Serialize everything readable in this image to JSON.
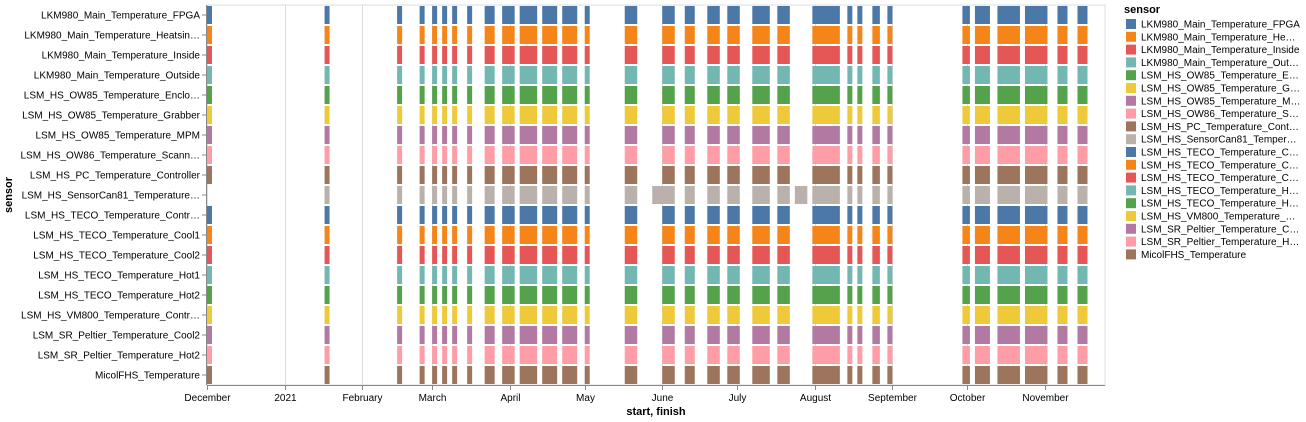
{
  "chart_data": {
    "type": "gantt",
    "x_title": "start, finish",
    "y_title": "sensor",
    "legend_title": "sensor",
    "legend_placement": "right",
    "x_ticks": [
      "December",
      "2021",
      "February",
      "March",
      "April",
      "May",
      "June",
      "July",
      "August",
      "September",
      "October",
      "November"
    ],
    "x_tick_dates": [
      "2020-12-01",
      "2021-01-01",
      "2021-02-01",
      "2021-03-01",
      "2021-04-01",
      "2021-05-01",
      "2021-06-01",
      "2021-07-01",
      "2021-08-01",
      "2021-09-01",
      "2021-10-01",
      "2021-11-01"
    ],
    "x_domain": [
      "2020-12-01",
      "2021-11-25"
    ],
    "grid": true,
    "sensors": [
      {
        "label": "LKM980_Main_Temperature_FPGA",
        "legend": "LKM980_Main_Temperature_FPGA",
        "color": "#4c78a8"
      },
      {
        "label": "LKM980_Main_Temperature_Heatsin…",
        "legend": "LKM980_Main_Temperature_He…",
        "color": "#f58518"
      },
      {
        "label": "LKM980_Main_Temperature_Inside",
        "legend": "LKM980_Main_Temperature_Inside",
        "color": "#e45756"
      },
      {
        "label": "LKM980_Main_Temperature_Outside",
        "legend": "LKM980_Main_Temperature_Out…",
        "color": "#72b7b2"
      },
      {
        "label": "LSM_HS_OW85_Temperature_Enclo…",
        "legend": "LSM_HS_OW85_Temperature_E…",
        "color": "#54a24b"
      },
      {
        "label": "LSM_HS_OW85_Temperature_Grabber",
        "legend": "LSM_HS_OW85_Temperature_G…",
        "color": "#eeca3b"
      },
      {
        "label": "LSM_HS_OW85_Temperature_MPM",
        "legend": "LSM_HS_OW85_Temperature_M…",
        "color": "#b279a2"
      },
      {
        "label": "LSM_HS_OW86_Temperature_Scann…",
        "legend": "LSM_HS_OW86_Temperature_S…",
        "color": "#ff9da6"
      },
      {
        "label": "LSM_HS_PC_Temperature_Controller",
        "legend": "LSM_HS_PC_Temperature_Cont…",
        "color": "#9d755d"
      },
      {
        "label": "LSM_HS_SensorCan81_Temperature…",
        "legend": "LSM_HS_SensorCan81_Temper…",
        "color": "#bab0ac"
      },
      {
        "label": "LSM_HS_TECO_Temperature_Contr…",
        "legend": "LSM_HS_TECO_Temperature_C…",
        "color": "#4c78a8"
      },
      {
        "label": "LSM_HS_TECO_Temperature_Cool1",
        "legend": "LSM_HS_TECO_Temperature_C…",
        "color": "#f58518"
      },
      {
        "label": "LSM_HS_TECO_Temperature_Cool2",
        "legend": "LSM_HS_TECO_Temperature_C…",
        "color": "#e45756"
      },
      {
        "label": "LSM_HS_TECO_Temperature_Hot1",
        "legend": "LSM_HS_TECO_Temperature_H…",
        "color": "#72b7b2"
      },
      {
        "label": "LSM_HS_TECO_Temperature_Hot2",
        "legend": "LSM_HS_TECO_Temperature_H…",
        "color": "#54a24b"
      },
      {
        "label": "LSM_HS_VM800_Temperature_Contr…",
        "legend": "LSM_HS_VM800_Temperature_…",
        "color": "#eeca3b"
      },
      {
        "label": "LSM_SR_Peltier_Temperature_Cool2",
        "legend": "LSM_SR_Peltier_Temperature_C…",
        "color": "#b279a2"
      },
      {
        "label": "LSM_SR_Peltier_Temperature_Hot2",
        "legend": "LSM_SR_Peltier_Temperature_H…",
        "color": "#ff9da6"
      },
      {
        "label": "MicolFHS_Temperature",
        "legend": "MicolFHS_Temperature",
        "color": "#9d755d"
      }
    ],
    "common_intervals": [
      [
        "2020-12-01",
        "2020-12-03"
      ],
      [
        "2021-01-17",
        "2021-01-19"
      ],
      [
        "2021-02-15",
        "2021-02-17"
      ],
      [
        "2021-02-24",
        "2021-02-26"
      ],
      [
        "2021-03-01",
        "2021-03-03"
      ],
      [
        "2021-03-05",
        "2021-03-07"
      ],
      [
        "2021-03-09",
        "2021-03-11"
      ],
      [
        "2021-03-15",
        "2021-03-17"
      ],
      [
        "2021-03-22",
        "2021-03-26"
      ],
      [
        "2021-03-29",
        "2021-04-03"
      ],
      [
        "2021-04-05",
        "2021-04-12"
      ],
      [
        "2021-04-14",
        "2021-04-20"
      ],
      [
        "2021-04-22",
        "2021-04-28"
      ],
      [
        "2021-05-01",
        "2021-05-03"
      ],
      [
        "2021-05-17",
        "2021-05-22"
      ],
      [
        "2021-06-01",
        "2021-06-06"
      ],
      [
        "2021-06-10",
        "2021-06-14"
      ],
      [
        "2021-06-19",
        "2021-06-24"
      ],
      [
        "2021-06-27",
        "2021-07-02"
      ],
      [
        "2021-07-07",
        "2021-07-14"
      ],
      [
        "2021-07-17",
        "2021-07-22"
      ],
      [
        "2021-07-31",
        "2021-08-11"
      ],
      [
        "2021-08-14",
        "2021-08-16"
      ],
      [
        "2021-08-18",
        "2021-08-20"
      ],
      [
        "2021-08-24",
        "2021-08-27"
      ],
      [
        "2021-08-30",
        "2021-09-01"
      ],
      [
        "2021-09-29",
        "2021-10-02"
      ],
      [
        "2021-10-04",
        "2021-10-10"
      ],
      [
        "2021-10-13",
        "2021-10-22"
      ],
      [
        "2021-10-24",
        "2021-11-02"
      ],
      [
        "2021-11-06",
        "2021-11-10"
      ],
      [
        "2021-11-14",
        "2021-11-18"
      ]
    ],
    "extra_intervals": [
      {
        "sensor": "LSM_HS_SensorCan81_Temperature…",
        "start": "2021-05-28",
        "finish": "2021-06-03"
      },
      {
        "sensor": "LSM_HS_SensorCan81_Temperature…",
        "start": "2021-07-24",
        "finish": "2021-07-29"
      }
    ],
    "missing_intervals": [
      {
        "sensor": "LSM_HS_SensorCan81_Temperature…",
        "start": "2020-12-01",
        "finish": "2020-12-03"
      }
    ]
  }
}
